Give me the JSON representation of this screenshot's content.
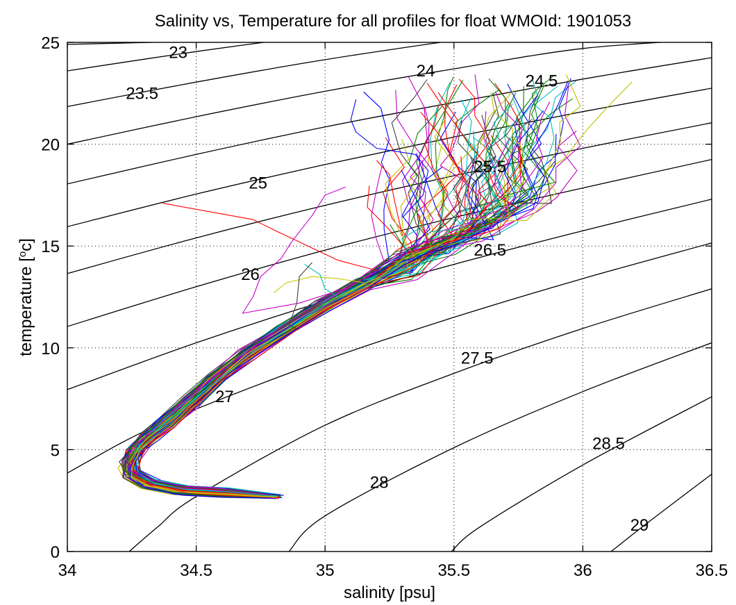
{
  "chart_data": {
    "type": "line",
    "title": "Salinity vs, Temperature for all profiles for float WMOId: 1901053",
    "xlabel": "salinity [psu]",
    "ylabel_prefix": "temperature [",
    "ylabel_sup": "o",
    "ylabel_suffix": "c]",
    "xlim": [
      34,
      36.5
    ],
    "ylim": [
      0,
      25
    ],
    "grid": true,
    "xticks": [
      34,
      34.5,
      35,
      35.5,
      36,
      36.5
    ],
    "xtick_labels": [
      "34",
      "34.5",
      "35",
      "35.5",
      "36",
      "36.5"
    ],
    "yticks": [
      0,
      5,
      10,
      15,
      20,
      25
    ],
    "ytick_labels": [
      "0",
      "5",
      "10",
      "15",
      "20",
      "25"
    ],
    "contour_labels": [
      {
        "text": "23",
        "s": 34.43,
        "t": 24.5
      },
      {
        "text": "23.5",
        "s": 34.29,
        "t": 22.5
      },
      {
        "text": "24",
        "s": 35.39,
        "t": 23.6
      },
      {
        "text": "24.5",
        "s": 35.84,
        "t": 23.1
      },
      {
        "text": "25",
        "s": 34.74,
        "t": 18.1
      },
      {
        "text": "25.5",
        "s": 35.64,
        "t": 18.9
      },
      {
        "text": "26",
        "s": 34.71,
        "t": 13.6
      },
      {
        "text": "26.5",
        "s": 35.64,
        "t": 14.8
      },
      {
        "text": "27",
        "s": 34.61,
        "t": 7.6
      },
      {
        "text": "27.5",
        "s": 35.59,
        "t": 9.5
      },
      {
        "text": "28",
        "s": 35.21,
        "t": 3.4
      },
      {
        "text": "28.5",
        "s": 36.1,
        "t": 5.3
      },
      {
        "text": "29",
        "s": 36.22,
        "t": 1.3
      }
    ],
    "density_contours": [
      {
        "sigma": 23.0,
        "points": [
          [
            34.0,
            24.9
          ],
          [
            34.5,
            25.05
          ],
          [
            35.0,
            25.2
          ]
        ]
      },
      {
        "sigma": 23.5,
        "points": [
          [
            34.0,
            23.6
          ],
          [
            34.5,
            24.55
          ],
          [
            35.0,
            25.4
          ]
        ]
      },
      {
        "sigma": 24.0,
        "points": [
          [
            34.0,
            21.85
          ],
          [
            34.5,
            23.05
          ],
          [
            35.0,
            24.15
          ],
          [
            35.5,
            25.1
          ]
        ]
      },
      {
        "sigma": 24.5,
        "points": [
          [
            34.0,
            20.0
          ],
          [
            34.5,
            21.35
          ],
          [
            35.0,
            22.6
          ],
          [
            35.5,
            23.7
          ],
          [
            36.0,
            24.7
          ],
          [
            36.5,
            25.15
          ]
        ]
      },
      {
        "sigma": 25.0,
        "points": [
          [
            34.0,
            18.05
          ],
          [
            34.5,
            19.5
          ],
          [
            35.0,
            20.85
          ],
          [
            35.5,
            22.05
          ],
          [
            36.0,
            23.2
          ],
          [
            36.5,
            24.25
          ]
        ]
      },
      {
        "sigma": 25.5,
        "points": [
          [
            34.0,
            15.95
          ],
          [
            34.5,
            17.55
          ],
          [
            35.0,
            19.0
          ],
          [
            35.5,
            20.35
          ],
          [
            36.0,
            21.6
          ],
          [
            36.5,
            22.75
          ]
        ]
      },
      {
        "sigma": 26.0,
        "points": [
          [
            34.0,
            13.65
          ],
          [
            34.5,
            15.4
          ],
          [
            35.0,
            17.0
          ],
          [
            35.5,
            18.45
          ],
          [
            36.0,
            19.8
          ],
          [
            36.5,
            21.05
          ]
        ]
      },
      {
        "sigma": 26.5,
        "points": [
          [
            34.0,
            11.05
          ],
          [
            34.5,
            13.0
          ],
          [
            35.0,
            14.8
          ],
          [
            35.5,
            16.4
          ],
          [
            36.0,
            17.85
          ],
          [
            36.5,
            19.25
          ]
        ]
      },
      {
        "sigma": 27.0,
        "points": [
          [
            34.0,
            7.95
          ],
          [
            34.5,
            10.25
          ],
          [
            35.0,
            12.3
          ],
          [
            35.5,
            14.1
          ],
          [
            36.0,
            15.75
          ],
          [
            36.5,
            17.3
          ]
        ]
      },
      {
        "sigma": 27.5,
        "points": [
          [
            34.0,
            3.85
          ],
          [
            34.25,
            5.6
          ],
          [
            34.5,
            7.0
          ],
          [
            35.0,
            9.4
          ],
          [
            35.5,
            11.5
          ],
          [
            36.0,
            13.4
          ],
          [
            36.5,
            15.15
          ]
        ]
      },
      {
        "sigma": 28.0,
        "points": [
          [
            34.24,
            0.0
          ],
          [
            34.35,
            1.2
          ],
          [
            34.5,
            2.7
          ],
          [
            35.0,
            6.2
          ],
          [
            35.5,
            8.75
          ],
          [
            36.0,
            10.95
          ],
          [
            36.5,
            12.9
          ]
        ]
      },
      {
        "sigma": 28.5,
        "points": [
          [
            34.86,
            0.0
          ],
          [
            35.0,
            1.75
          ],
          [
            35.5,
            5.1
          ],
          [
            36.0,
            7.85
          ],
          [
            36.5,
            10.25
          ]
        ]
      },
      {
        "sigma": 29.0,
        "points": [
          [
            35.49,
            0.0
          ],
          [
            35.6,
            1.2
          ],
          [
            36.0,
            4.25
          ],
          [
            36.5,
            7.6
          ]
        ]
      },
      {
        "sigma": 29.5,
        "points": [
          [
            36.11,
            0.0
          ],
          [
            36.25,
            1.4
          ],
          [
            36.5,
            3.8
          ]
        ]
      }
    ],
    "series_core": [
      [
        34.8,
        2.7
      ],
      [
        34.6,
        2.9
      ],
      [
        34.45,
        3.0
      ],
      [
        34.32,
        3.3
      ],
      [
        34.25,
        3.8
      ],
      [
        34.24,
        4.3
      ],
      [
        34.27,
        5.0
      ],
      [
        34.32,
        5.6
      ],
      [
        34.38,
        6.2
      ],
      [
        34.48,
        7.3
      ],
      [
        34.58,
        8.5
      ],
      [
        34.7,
        9.7
      ],
      [
        34.85,
        10.9
      ],
      [
        35.0,
        12.1
      ],
      [
        35.15,
        13.1
      ],
      [
        35.3,
        14.1
      ],
      [
        35.45,
        15.1
      ],
      [
        35.6,
        16.0
      ],
      [
        35.75,
        16.9
      ],
      [
        35.85,
        17.5
      ]
    ],
    "series_branches": [
      {
        "color": "#ff0000",
        "points": [
          [
            34.37,
            17.1
          ],
          [
            34.72,
            16.3
          ],
          [
            34.8,
            15.8
          ],
          [
            35.05,
            14.3
          ],
          [
            35.2,
            13.8
          ]
        ]
      },
      {
        "color": "#0000ff",
        "points": [
          [
            35.12,
            22.2
          ],
          [
            35.1,
            21.2
          ],
          [
            35.12,
            20.6
          ],
          [
            35.2,
            19.8
          ],
          [
            35.35,
            19.5
          ],
          [
            35.4,
            18.7
          ],
          [
            35.38,
            17.5
          ],
          [
            35.3,
            16.4
          ]
        ]
      },
      {
        "color": "#cc00cc",
        "points": [
          [
            35.08,
            17.9
          ],
          [
            35.0,
            17.5
          ],
          [
            34.95,
            16.5
          ],
          [
            34.87,
            15.2
          ],
          [
            34.83,
            14.4
          ],
          [
            34.75,
            13.5
          ],
          [
            34.72,
            12.5
          ],
          [
            34.68,
            11.7
          ],
          [
            34.9,
            12.2
          ],
          [
            35.1,
            13.0
          ]
        ]
      },
      {
        "color": "#cc00cc",
        "points": [
          [
            35.22,
            18.9
          ],
          [
            35.2,
            17.8
          ],
          [
            35.18,
            16.5
          ],
          [
            35.2,
            15.3
          ],
          [
            35.23,
            14.2
          ]
        ]
      },
      {
        "color": "#c8c800",
        "points": [
          [
            34.8,
            12.7
          ],
          [
            34.85,
            13.2
          ],
          [
            34.95,
            13.5
          ],
          [
            35.05,
            13.4
          ],
          [
            35.15,
            13.2
          ]
        ]
      },
      {
        "color": "#00b8b8",
        "points": [
          [
            34.92,
            14.1
          ],
          [
            34.98,
            13.6
          ],
          [
            35.0,
            12.9
          ],
          [
            35.05,
            12.5
          ]
        ]
      },
      {
        "color": "#404040",
        "points": [
          [
            34.95,
            14.2
          ],
          [
            34.9,
            13.5
          ],
          [
            34.89,
            12.2
          ],
          [
            34.86,
            11.1
          ],
          [
            34.9,
            10.9
          ]
        ]
      },
      {
        "color": "#ff0000",
        "points": [
          [
            35.2,
            19.2
          ],
          [
            35.25,
            18.5
          ],
          [
            35.27,
            17.2
          ],
          [
            35.3,
            15.5
          ]
        ]
      }
    ],
    "series_palette": [
      "#0000ff",
      "#008000",
      "#ff0000",
      "#00bfbf",
      "#bf00bf",
      "#bfbf00",
      "#404040"
    ],
    "profile_count": 90
  }
}
